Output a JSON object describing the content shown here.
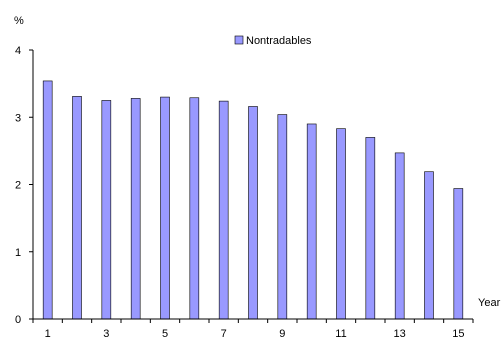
{
  "chart_data": {
    "type": "bar",
    "title": "",
    "ylabel": "%",
    "xlabel": "Year",
    "ylim": [
      0,
      4
    ],
    "yticks": [
      "0",
      "1",
      "2",
      "3",
      "4"
    ],
    "grid": false,
    "legend_position": "top-center",
    "categories": [
      "1",
      "2",
      "3",
      "4",
      "5",
      "6",
      "7",
      "8",
      "9",
      "10",
      "11",
      "12",
      "13",
      "14",
      "15"
    ],
    "x_tick_labels_shown": [
      "1",
      "3",
      "5",
      "7",
      "9",
      "11",
      "13",
      "15"
    ],
    "series": [
      {
        "name": "Nontradables",
        "color": "#9999ff",
        "values": [
          3.54,
          3.31,
          3.25,
          3.28,
          3.3,
          3.29,
          3.24,
          3.16,
          3.04,
          2.9,
          2.83,
          2.7,
          2.47,
          2.19,
          1.94
        ]
      }
    ]
  }
}
